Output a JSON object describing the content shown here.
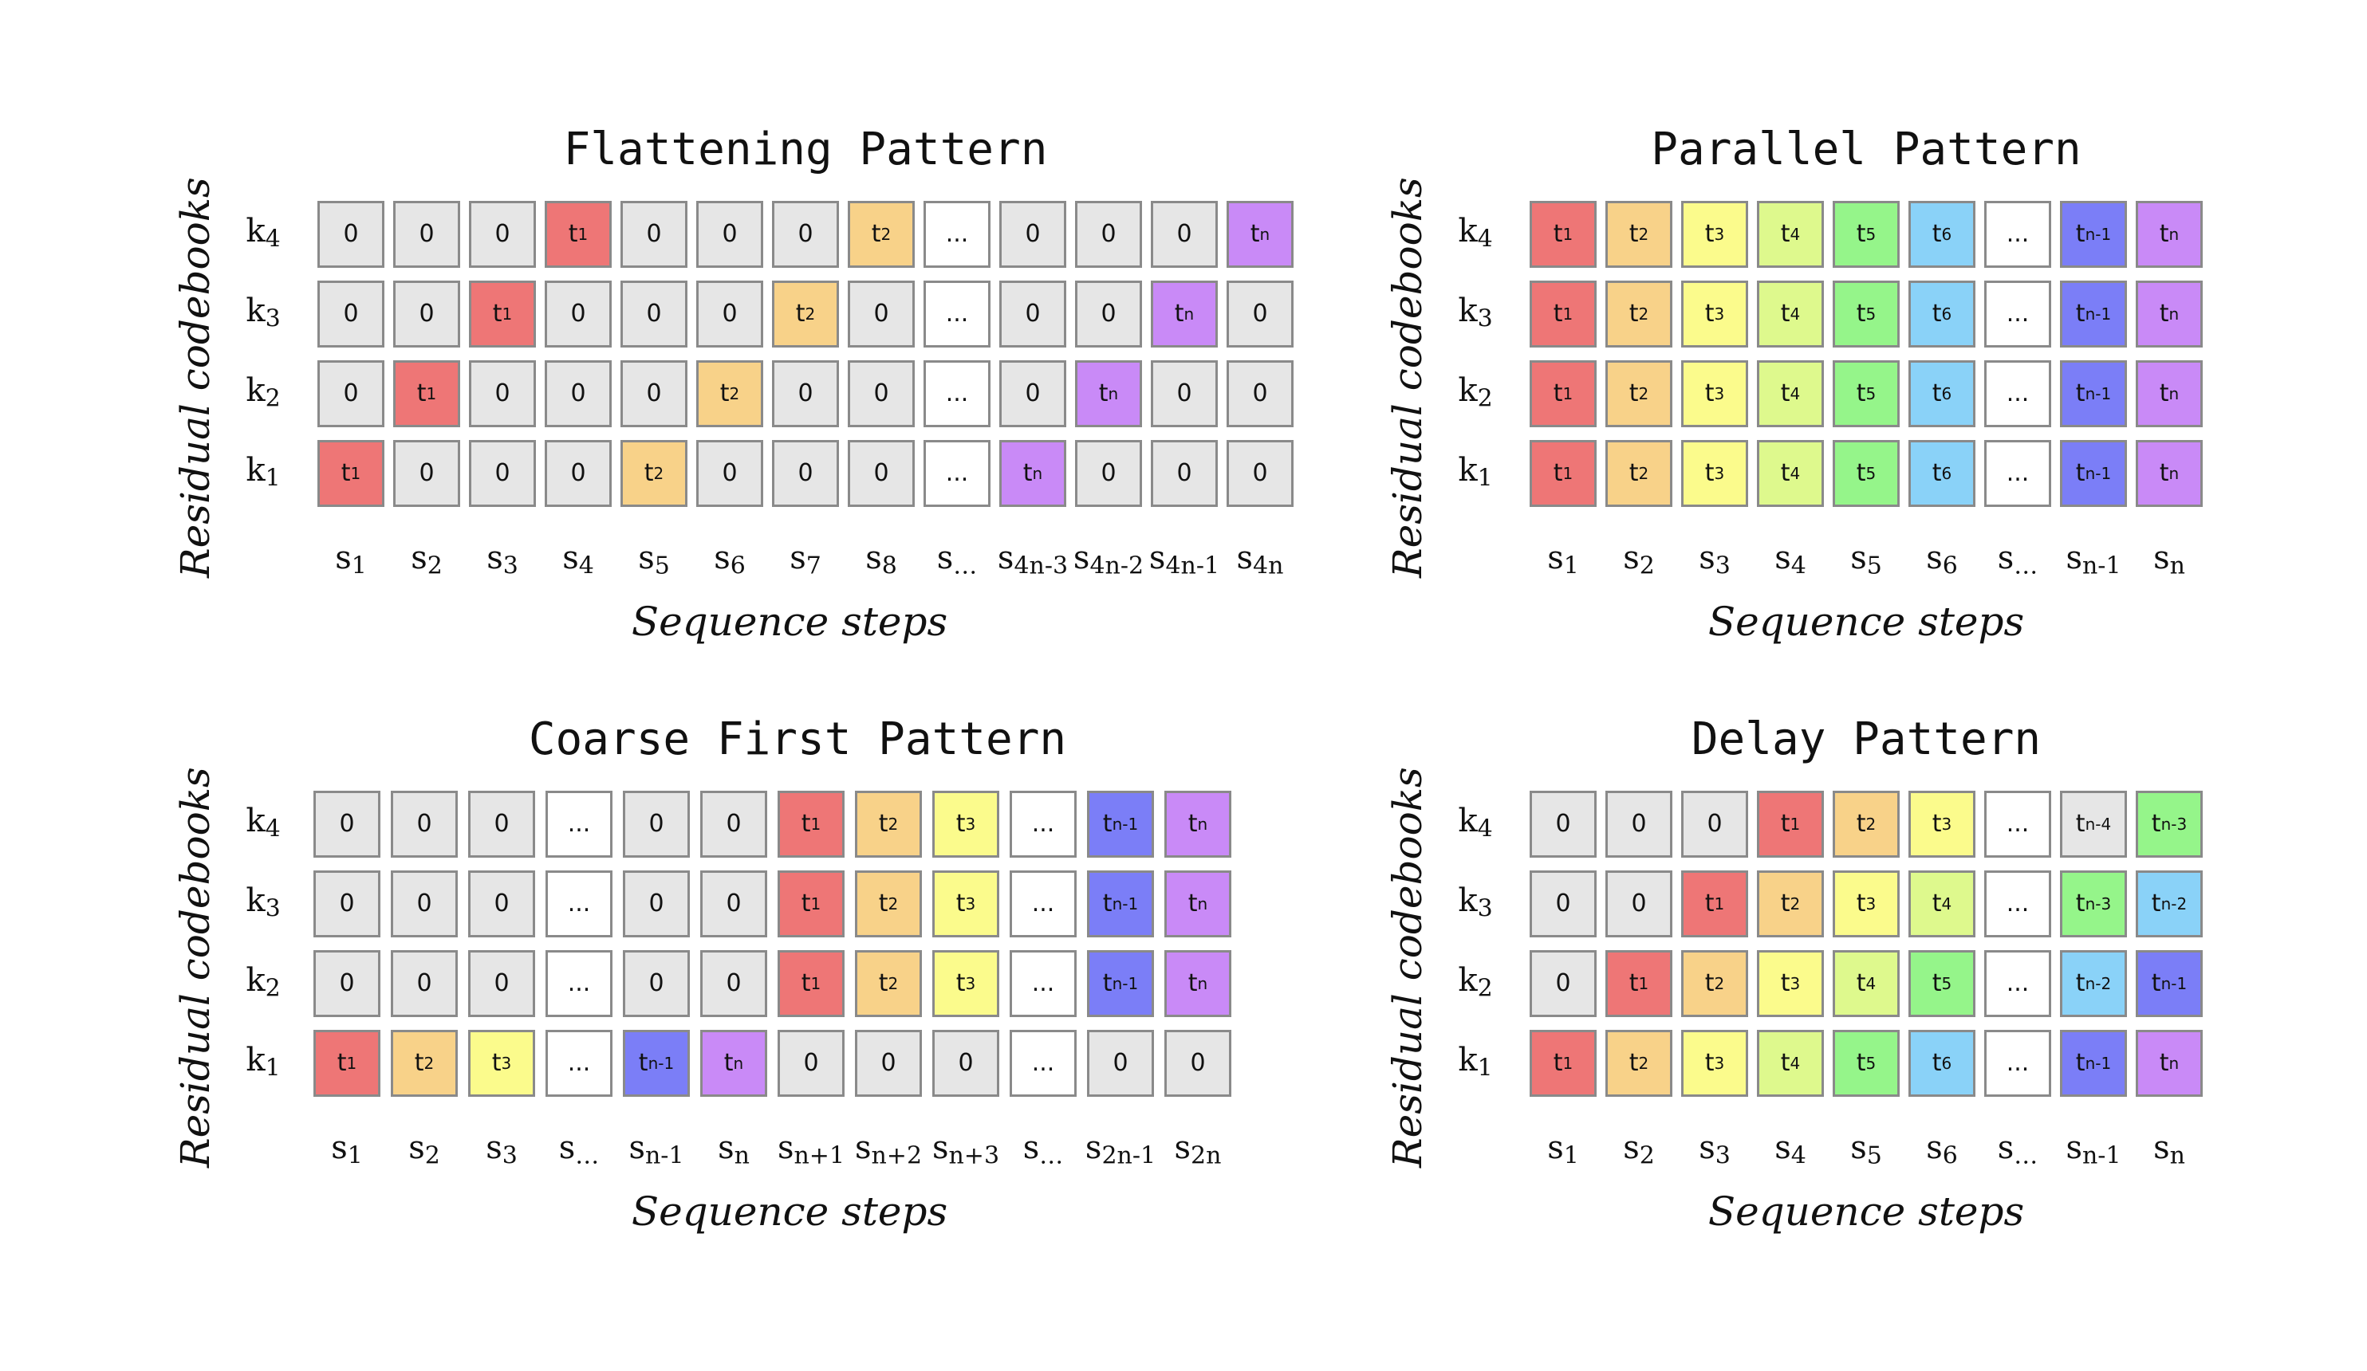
{
  "colors": {
    "zero": "#e6e6e6",
    "dots": "#ffffff",
    "t1": "#ee7676",
    "t2": "#f8d289",
    "t3": "#fbfb8c",
    "t4": "#def98d",
    "t5": "#95f58a",
    "t6": "#8ad2f8",
    "tn-3": "#95f58a",
    "tn-2": "#8ad2f8",
    "tn-1": "#7b7ef7",
    "tn": "#c98af7"
  },
  "panels": [
    {
      "id": "flattening",
      "title": "Flattening Pattern",
      "ylabel": "Residual codebooks",
      "xlabel": "Sequence steps",
      "rows": [
        {
          "label": {
            "base": "k",
            "sub": "4"
          },
          "cells": [
            "0",
            "0",
            "0",
            "t1",
            "0",
            "0",
            "0",
            "t2",
            "...",
            "0",
            "0",
            "0",
            "tn"
          ]
        },
        {
          "label": {
            "base": "k",
            "sub": "3"
          },
          "cells": [
            "0",
            "0",
            "t1",
            "0",
            "0",
            "0",
            "t2",
            "0",
            "...",
            "0",
            "0",
            "tn",
            "0"
          ]
        },
        {
          "label": {
            "base": "k",
            "sub": "2"
          },
          "cells": [
            "0",
            "t1",
            "0",
            "0",
            "0",
            "t2",
            "0",
            "0",
            "...",
            "0",
            "tn",
            "0",
            "0"
          ]
        },
        {
          "label": {
            "base": "k",
            "sub": "1"
          },
          "cells": [
            "t1",
            "0",
            "0",
            "0",
            "t2",
            "0",
            "0",
            "0",
            "...",
            "tn",
            "0",
            "0",
            "0"
          ]
        }
      ],
      "cols": [
        {
          "base": "s",
          "sub": "1"
        },
        {
          "base": "s",
          "sub": "2"
        },
        {
          "base": "s",
          "sub": "3"
        },
        {
          "base": "s",
          "sub": "4"
        },
        {
          "base": "s",
          "sub": "5"
        },
        {
          "base": "s",
          "sub": "6"
        },
        {
          "base": "s",
          "sub": "7"
        },
        {
          "base": "s",
          "sub": "8"
        },
        {
          "base": "s",
          "sub": "…"
        },
        {
          "base": "s",
          "sub": "4n-3"
        },
        {
          "base": "s",
          "sub": "4n-2"
        },
        {
          "base": "s",
          "sub": "4n-1"
        },
        {
          "base": "s",
          "sub": "4n"
        }
      ]
    },
    {
      "id": "parallel",
      "title": "Parallel Pattern",
      "ylabel": "Residual codebooks",
      "xlabel": "Sequence steps",
      "rows": [
        {
          "label": {
            "base": "k",
            "sub": "4"
          },
          "cells": [
            "t1",
            "t2",
            "t3",
            "t4",
            "t5",
            "t6",
            "...",
            "tn-1",
            "tn"
          ]
        },
        {
          "label": {
            "base": "k",
            "sub": "3"
          },
          "cells": [
            "t1",
            "t2",
            "t3",
            "t4",
            "t5",
            "t6",
            "...",
            "tn-1",
            "tn"
          ]
        },
        {
          "label": {
            "base": "k",
            "sub": "2"
          },
          "cells": [
            "t1",
            "t2",
            "t3",
            "t4",
            "t5",
            "t6",
            "...",
            "tn-1",
            "tn"
          ]
        },
        {
          "label": {
            "base": "k",
            "sub": "1"
          },
          "cells": [
            "t1",
            "t2",
            "t3",
            "t4",
            "t5",
            "t6",
            "...",
            "tn-1",
            "tn"
          ]
        }
      ],
      "cols": [
        {
          "base": "s",
          "sub": "1"
        },
        {
          "base": "s",
          "sub": "2"
        },
        {
          "base": "s",
          "sub": "3"
        },
        {
          "base": "s",
          "sub": "4"
        },
        {
          "base": "s",
          "sub": "5"
        },
        {
          "base": "s",
          "sub": "6"
        },
        {
          "base": "s",
          "sub": "…"
        },
        {
          "base": "s",
          "sub": "n-1"
        },
        {
          "base": "s",
          "sub": "n"
        }
      ]
    },
    {
      "id": "coarse-first",
      "title": "Coarse First Pattern",
      "ylabel": "Residual codebooks",
      "xlabel": "Sequence steps",
      "rows": [
        {
          "label": {
            "base": "k",
            "sub": "4"
          },
          "cells": [
            "0",
            "0",
            "0",
            "...",
            "0",
            "0",
            "t1",
            "t2",
            "t3",
            "...",
            "tn-1",
            "tn"
          ]
        },
        {
          "label": {
            "base": "k",
            "sub": "3"
          },
          "cells": [
            "0",
            "0",
            "0",
            "...",
            "0",
            "0",
            "t1",
            "t2",
            "t3",
            "...",
            "tn-1",
            "tn"
          ]
        },
        {
          "label": {
            "base": "k",
            "sub": "2"
          },
          "cells": [
            "0",
            "0",
            "0",
            "...",
            "0",
            "0",
            "t1",
            "t2",
            "t3",
            "...",
            "tn-1",
            "tn"
          ]
        },
        {
          "label": {
            "base": "k",
            "sub": "1"
          },
          "cells": [
            "t1",
            "t2",
            "t3",
            "...",
            "tn-1",
            "tn",
            "0",
            "0",
            "0",
            "...",
            "0",
            "0"
          ]
        }
      ],
      "cols": [
        {
          "base": "s",
          "sub": "1"
        },
        {
          "base": "s",
          "sub": "2"
        },
        {
          "base": "s",
          "sub": "3"
        },
        {
          "base": "s",
          "sub": "…"
        },
        {
          "base": "s",
          "sub": "n-1"
        },
        {
          "base": "s",
          "sub": "n"
        },
        {
          "base": "s",
          "sub": "n+1"
        },
        {
          "base": "s",
          "sub": "n+2"
        },
        {
          "base": "s",
          "sub": "n+3"
        },
        {
          "base": "s",
          "sub": "…"
        },
        {
          "base": "s",
          "sub": "2n-1"
        },
        {
          "base": "s",
          "sub": "2n"
        }
      ]
    },
    {
      "id": "delay",
      "title": "Delay Pattern",
      "ylabel": "Residual codebooks",
      "xlabel": "Sequence steps",
      "rows": [
        {
          "label": {
            "base": "k",
            "sub": "4"
          },
          "cells": [
            "0",
            "0",
            "0",
            "t1",
            "t2",
            "t3",
            "...",
            "tn-4",
            "tn-3"
          ]
        },
        {
          "label": {
            "base": "k",
            "sub": "3"
          },
          "cells": [
            "0",
            "0",
            "t1",
            "t2",
            "t3",
            "t4",
            "...",
            "tn-3",
            "tn-2"
          ]
        },
        {
          "label": {
            "base": "k",
            "sub": "2"
          },
          "cells": [
            "0",
            "t1",
            "t2",
            "t3",
            "t4",
            "t5",
            "...",
            "tn-2",
            "tn-1"
          ]
        },
        {
          "label": {
            "base": "k",
            "sub": "1"
          },
          "cells": [
            "t1",
            "t2",
            "t3",
            "t4",
            "t5",
            "t6",
            "...",
            "tn-1",
            "tn"
          ]
        }
      ],
      "cols": [
        {
          "base": "s",
          "sub": "1"
        },
        {
          "base": "s",
          "sub": "2"
        },
        {
          "base": "s",
          "sub": "3"
        },
        {
          "base": "s",
          "sub": "4"
        },
        {
          "base": "s",
          "sub": "5"
        },
        {
          "base": "s",
          "sub": "6"
        },
        {
          "base": "s",
          "sub": "…"
        },
        {
          "base": "s",
          "sub": "n-1"
        },
        {
          "base": "s",
          "sub": "n"
        }
      ]
    }
  ]
}
